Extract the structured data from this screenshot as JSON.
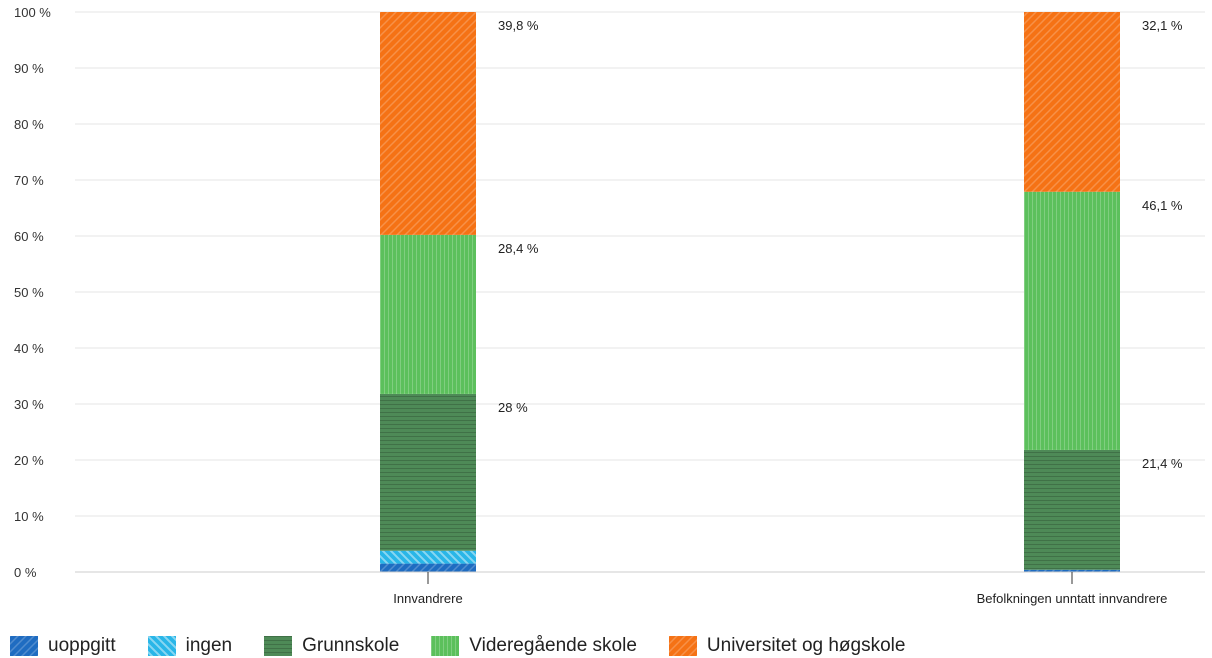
{
  "chart_data": {
    "type": "bar",
    "stacked": true,
    "categories": [
      "Innvandrere",
      "Befolkningen unntatt innvandrere"
    ],
    "series": [
      {
        "name": "uoppgitt",
        "color": "#1f6cc1",
        "pattern": "diagonal",
        "values": [
          1.5,
          0.4
        ]
      },
      {
        "name": "ingen",
        "color": "#29b6e8",
        "pattern": "diagonal-reverse",
        "values": [
          2.3,
          0.0
        ]
      },
      {
        "name": "Grunnskole",
        "color": "#4e8a57",
        "pattern": "horizontal",
        "values": [
          28.0,
          21.4
        ]
      },
      {
        "name": "Videregående skole",
        "color": "#5cc05c",
        "pattern": "vertical",
        "values": [
          28.4,
          46.1
        ]
      },
      {
        "name": "Universitet og høgskole",
        "color": "#f57215",
        "pattern": "diagonal",
        "values": [
          39.8,
          32.1
        ]
      }
    ],
    "data_labels": [
      [
        null,
        null,
        "28 %",
        "28,4 %",
        "39,8 %"
      ],
      [
        null,
        null,
        "21,4 %",
        "46,1 %",
        "32,1 %"
      ]
    ],
    "y_ticks": [
      "0 %",
      "10 %",
      "20 %",
      "30 %",
      "40 %",
      "50 %",
      "60 %",
      "70 %",
      "80 %",
      "90 %",
      "100 %"
    ],
    "ylim": [
      0,
      100
    ],
    "grid": true,
    "legend_position": "bottom-left"
  }
}
